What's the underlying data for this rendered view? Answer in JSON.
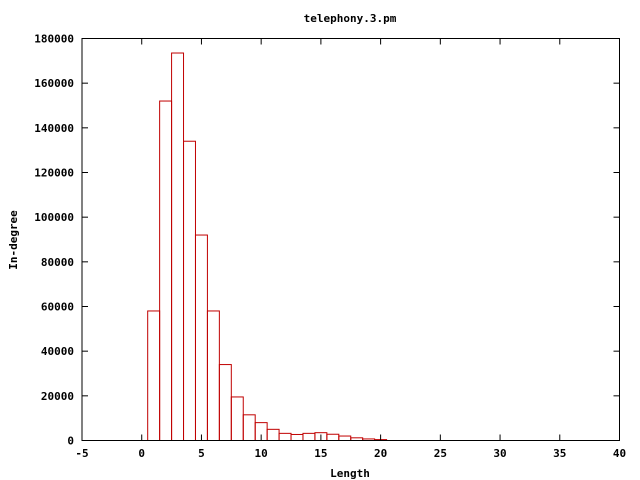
{
  "chart_data": {
    "type": "bar",
    "title": "telephony.3.pm",
    "xlabel": "Length",
    "ylabel": "In-degree",
    "xlim": [
      -5,
      40
    ],
    "ylim": [
      0,
      180000
    ],
    "xticks": [
      -5,
      0,
      5,
      10,
      15,
      20,
      25,
      30,
      35,
      40
    ],
    "yticks": [
      0,
      20000,
      40000,
      60000,
      80000,
      100000,
      120000,
      140000,
      160000,
      180000
    ],
    "bar_width": 1,
    "bar_color": "#c00000",
    "grid": false,
    "x": [
      1,
      2,
      3,
      4,
      5,
      6,
      7,
      8,
      9,
      10,
      11,
      12,
      13,
      14,
      15,
      16,
      17,
      18,
      19,
      20
    ],
    "values": [
      58000,
      152000,
      173500,
      134000,
      92000,
      58000,
      34000,
      19500,
      11500,
      8000,
      5000,
      3200,
      2700,
      3200,
      3500,
      2800,
      2000,
      1200,
      700,
      400
    ]
  }
}
